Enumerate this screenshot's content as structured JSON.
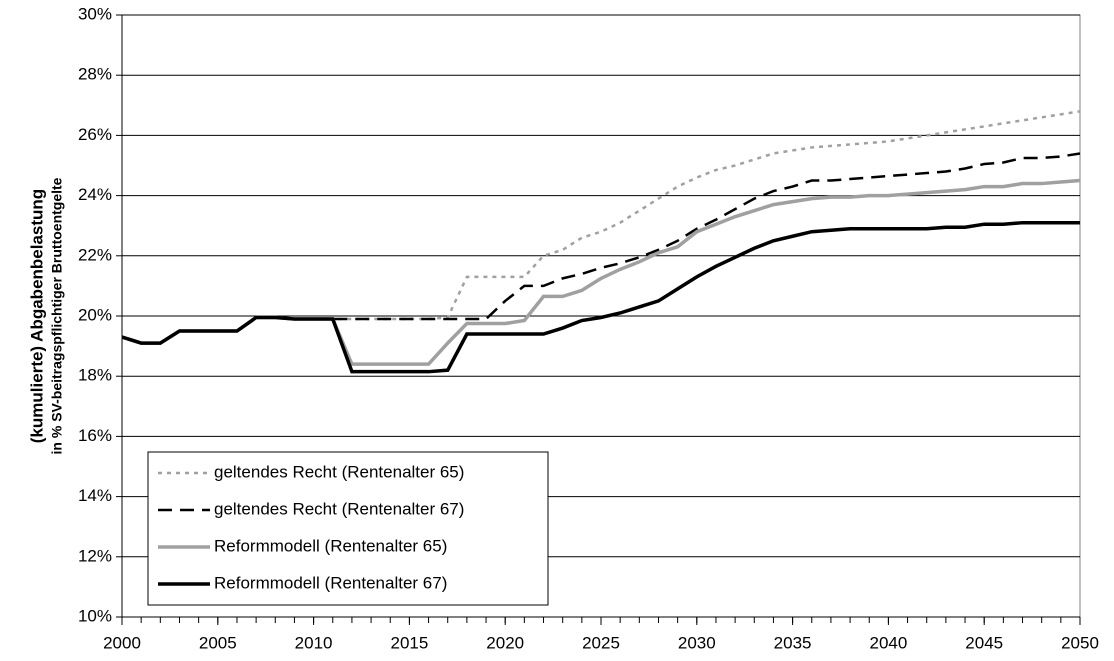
{
  "chart_data": {
    "type": "line",
    "ylabel": "(kumulierte) Abgabenbelastung",
    "ylabel_sub": "in % SV-beitragspflichtiger Bruttoentgelte",
    "x": [
      2000,
      2001,
      2002,
      2003,
      2004,
      2005,
      2006,
      2007,
      2008,
      2009,
      2010,
      2011,
      2012,
      2013,
      2014,
      2015,
      2016,
      2017,
      2018,
      2019,
      2020,
      2021,
      2022,
      2023,
      2024,
      2025,
      2026,
      2027,
      2028,
      2029,
      2030,
      2031,
      2032,
      2033,
      2034,
      2035,
      2036,
      2037,
      2038,
      2039,
      2040,
      2041,
      2042,
      2043,
      2044,
      2045,
      2046,
      2047,
      2048,
      2049,
      2050
    ],
    "xlim": [
      2000,
      2050
    ],
    "xticks": [
      2000,
      2005,
      2010,
      2015,
      2020,
      2025,
      2030,
      2035,
      2040,
      2045,
      2050
    ],
    "ylim": [
      10,
      30
    ],
    "yticks": [
      {
        "value": 10,
        "label": "10%"
      },
      {
        "value": 12,
        "label": "12%"
      },
      {
        "value": 14,
        "label": "14%"
      },
      {
        "value": 16,
        "label": "16%"
      },
      {
        "value": 18,
        "label": "18%"
      },
      {
        "value": 20,
        "label": "20%"
      },
      {
        "value": 22,
        "label": "22%"
      },
      {
        "value": 24,
        "label": "24%"
      },
      {
        "value": 26,
        "label": "26%"
      },
      {
        "value": 28,
        "label": "28%"
      },
      {
        "value": 30,
        "label": "30%"
      }
    ],
    "grid": true,
    "legend": "bottom-left",
    "series": [
      {
        "name": "geltendes Recht (Rentenalter 65)",
        "color": "#a0a0a0",
        "dash": "dotted",
        "values": [
          19.3,
          19.1,
          19.1,
          19.5,
          19.5,
          19.5,
          19.5,
          19.95,
          19.95,
          19.9,
          19.9,
          19.9,
          19.9,
          19.9,
          19.9,
          19.9,
          19.9,
          19.95,
          21.3,
          21.3,
          21.3,
          21.3,
          22.0,
          22.2,
          22.6,
          22.8,
          23.1,
          23.5,
          23.9,
          24.3,
          24.6,
          24.85,
          25.0,
          25.2,
          25.4,
          25.5,
          25.6,
          25.65,
          25.7,
          25.75,
          25.8,
          25.9,
          26.0,
          26.1,
          26.2,
          26.3,
          26.4,
          26.5,
          26.6,
          26.7,
          26.8
        ]
      },
      {
        "name": "geltendes Recht (Rentenalter 67)",
        "color": "#000000",
        "dash": "dashed",
        "values": [
          19.3,
          19.1,
          19.1,
          19.5,
          19.5,
          19.5,
          19.5,
          19.95,
          19.95,
          19.9,
          19.9,
          19.9,
          19.9,
          19.9,
          19.9,
          19.9,
          19.9,
          19.9,
          19.9,
          19.9,
          20.5,
          21.0,
          21.0,
          21.25,
          21.4,
          21.6,
          21.75,
          21.95,
          22.2,
          22.5,
          22.9,
          23.2,
          23.55,
          23.9,
          24.15,
          24.3,
          24.5,
          24.5,
          24.55,
          24.6,
          24.65,
          24.7,
          24.75,
          24.8,
          24.9,
          25.05,
          25.1,
          25.25,
          25.25,
          25.3,
          25.4
        ]
      },
      {
        "name": "Reformmodell (Rentenalter 65)",
        "color": "#a0a0a0",
        "dash": "solid",
        "values": [
          19.3,
          19.1,
          19.1,
          19.5,
          19.5,
          19.5,
          19.5,
          19.95,
          19.95,
          19.9,
          19.9,
          19.9,
          18.4,
          18.4,
          18.4,
          18.4,
          18.4,
          19.1,
          19.75,
          19.75,
          19.75,
          19.85,
          20.65,
          20.65,
          20.85,
          21.25,
          21.55,
          21.8,
          22.1,
          22.3,
          22.8,
          23.05,
          23.3,
          23.5,
          23.7,
          23.8,
          23.9,
          23.95,
          23.95,
          24.0,
          24.0,
          24.05,
          24.1,
          24.15,
          24.2,
          24.3,
          24.3,
          24.4,
          24.4,
          24.45,
          24.5
        ]
      },
      {
        "name": "Reformmodell (Rentenalter 67)",
        "color": "#000000",
        "dash": "solid",
        "values": [
          19.3,
          19.1,
          19.1,
          19.5,
          19.5,
          19.5,
          19.5,
          19.95,
          19.95,
          19.9,
          19.9,
          19.9,
          18.15,
          18.15,
          18.15,
          18.15,
          18.15,
          18.2,
          19.4,
          19.4,
          19.4,
          19.4,
          19.4,
          19.6,
          19.85,
          19.95,
          20.1,
          20.3,
          20.5,
          20.9,
          21.3,
          21.65,
          21.95,
          22.25,
          22.5,
          22.65,
          22.8,
          22.85,
          22.9,
          22.9,
          22.9,
          22.9,
          22.9,
          22.95,
          22.95,
          23.05,
          23.05,
          23.1,
          23.1,
          23.1,
          23.1
        ]
      }
    ]
  }
}
